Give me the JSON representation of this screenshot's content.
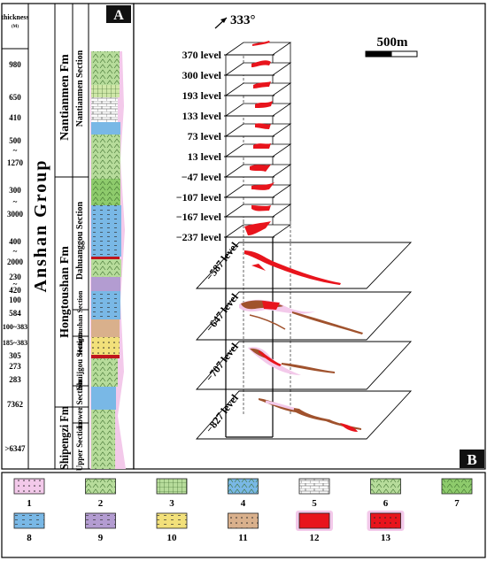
{
  "panel_a": {
    "label": "A",
    "thickness_header": "thickness",
    "thickness_unit": "(M)",
    "group": "Anshan    Group",
    "formations": [
      {
        "name": "Nantianmen Fm"
      },
      {
        "name": "Hongtoushan Fm"
      },
      {
        "name": "Shipengzi Fm"
      }
    ],
    "sections": [
      {
        "name": "Nantianmen Section"
      },
      {
        "name": "Dahuanggou Section"
      },
      {
        "name": "Hongtoushan Section"
      },
      {
        "name": "Shuijgou Section"
      },
      {
        "name": "Lower Section"
      },
      {
        "name": "Upper Section"
      }
    ],
    "thicknesses": [
      "980",
      "650",
      "410",
      "500",
      "~",
      "1270",
      "300",
      "~",
      "3000",
      "400",
      "~",
      "2000",
      "230",
      "~",
      "420",
      "100",
      "584",
      "100~383",
      "185~383",
      "305",
      "273",
      "283",
      "7362",
      ">6347"
    ]
  },
  "panel_b": {
    "label": "B",
    "north_arrow": "333°",
    "scale_label": "500m",
    "levels": [
      "370 level",
      "300 level",
      "193 level",
      "133 level",
      "73 level",
      "13 level",
      "−47 level",
      "−107 level",
      "−167 level",
      "−237 level"
    ],
    "lower_levels": [
      "−587 level",
      "−647 level",
      "−707 level",
      "−827 level"
    ]
  },
  "legend": {
    "items": [
      "1",
      "2",
      "3",
      "4",
      "5",
      "6",
      "7",
      "8",
      "9",
      "10",
      "11",
      "12",
      "13"
    ]
  },
  "colors": {
    "ore": "#e8141c",
    "ore_dark": "#a0522d",
    "pink": "#f3c9ea",
    "green": "#b7dc9b",
    "blue": "#79b8e6",
    "purple": "#b39cd1",
    "yellow": "#f2e07a",
    "tan": "#d9b08c"
  }
}
